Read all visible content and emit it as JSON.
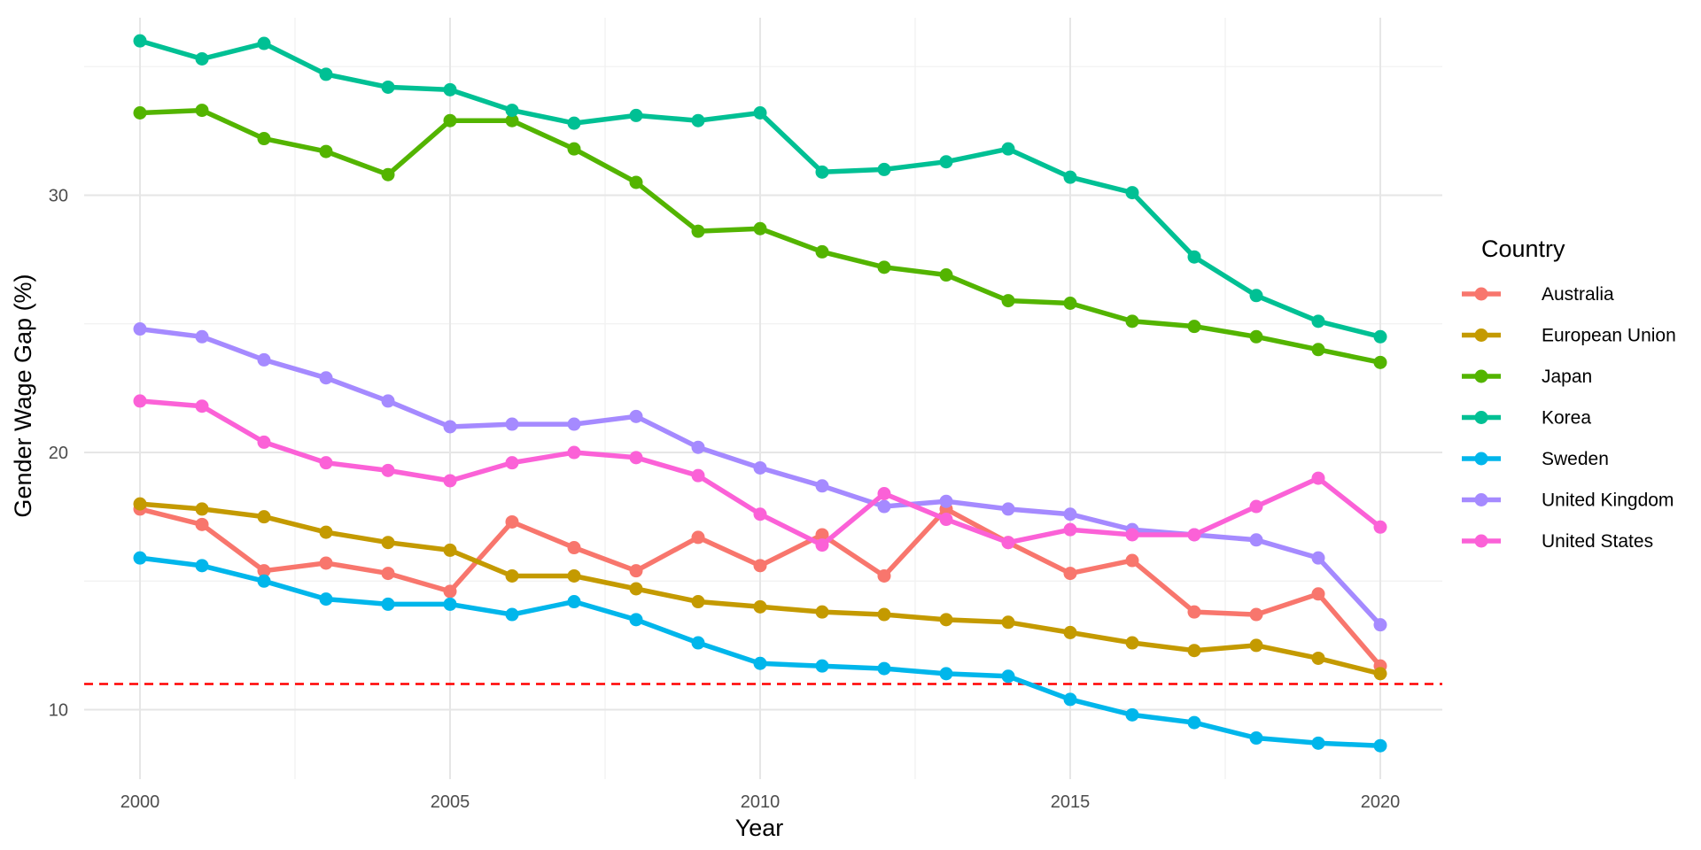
{
  "chart_data": {
    "type": "line",
    "title": "",
    "xlabel": "Year",
    "ylabel": "Gender Wage Gap (%)",
    "x": [
      2000,
      2001,
      2002,
      2003,
      2004,
      2005,
      2006,
      2007,
      2008,
      2009,
      2010,
      2011,
      2012,
      2013,
      2014,
      2015,
      2016,
      2017,
      2018,
      2019,
      2020
    ],
    "xlim": [
      1999.1,
      2021
    ],
    "ylim": [
      7.3,
      36.9
    ],
    "x_ticks": [
      2000,
      2005,
      2010,
      2015,
      2020
    ],
    "x_minor_ticks": [
      2002.5,
      2007.5,
      2012.5,
      2017.5
    ],
    "y_ticks": [
      10,
      20,
      30
    ],
    "y_minor_ticks": [
      15,
      25,
      35
    ],
    "grid": true,
    "legend_position": "right",
    "legend_title": "Country",
    "series": [
      {
        "name": "Australia",
        "color": "#F8766D",
        "values": [
          17.8,
          17.2,
          15.4,
          15.7,
          15.3,
          14.6,
          17.3,
          16.3,
          15.4,
          16.7,
          15.6,
          16.8,
          15.2,
          17.8,
          16.5,
          15.3,
          15.8,
          13.8,
          13.7,
          14.5,
          11.7
        ]
      },
      {
        "name": "European Union",
        "color": "#C49A00",
        "values": [
          18.0,
          17.8,
          17.5,
          16.9,
          16.5,
          16.2,
          15.2,
          15.2,
          14.7,
          14.2,
          14.0,
          13.8,
          13.7,
          13.5,
          13.4,
          13.0,
          12.6,
          12.3,
          12.5,
          12.0,
          11.4
        ]
      },
      {
        "name": "Japan",
        "color": "#53B400",
        "values": [
          33.2,
          33.3,
          32.2,
          31.7,
          30.8,
          32.9,
          32.9,
          31.8,
          30.5,
          28.6,
          28.7,
          27.8,
          27.2,
          26.9,
          25.9,
          25.8,
          25.1,
          24.9,
          24.5,
          24.0,
          23.5
        ]
      },
      {
        "name": "Korea",
        "color": "#00C094",
        "values": [
          36.0,
          35.3,
          35.9,
          34.7,
          34.2,
          34.1,
          33.3,
          32.8,
          33.1,
          32.9,
          33.2,
          30.9,
          31.0,
          31.3,
          31.8,
          30.7,
          30.1,
          27.6,
          26.1,
          25.1,
          24.5
        ]
      },
      {
        "name": "Sweden",
        "color": "#00B6EB",
        "values": [
          15.9,
          15.6,
          15.0,
          14.3,
          14.1,
          14.1,
          13.7,
          14.2,
          13.5,
          12.6,
          11.8,
          11.7,
          11.6,
          11.4,
          11.3,
          10.4,
          9.8,
          9.5,
          8.9,
          8.7,
          8.6
        ]
      },
      {
        "name": "United Kingdom",
        "color": "#A58AFF",
        "values": [
          24.8,
          24.5,
          23.6,
          22.9,
          22.0,
          21.0,
          21.1,
          21.1,
          21.4,
          20.2,
          19.4,
          18.7,
          17.9,
          18.1,
          17.8,
          17.6,
          17.0,
          16.8,
          16.6,
          15.9,
          13.3
        ]
      },
      {
        "name": "United States",
        "color": "#FB61D7",
        "values": [
          22.0,
          21.8,
          20.4,
          19.6,
          19.3,
          18.9,
          19.6,
          20.0,
          19.8,
          19.1,
          17.6,
          16.4,
          18.4,
          17.4,
          16.5,
          17.0,
          16.8,
          16.8,
          17.9,
          19.0,
          17.1
        ]
      }
    ],
    "reference_line": {
      "y": 11,
      "color": "#FF0000",
      "style": "dashed"
    }
  }
}
